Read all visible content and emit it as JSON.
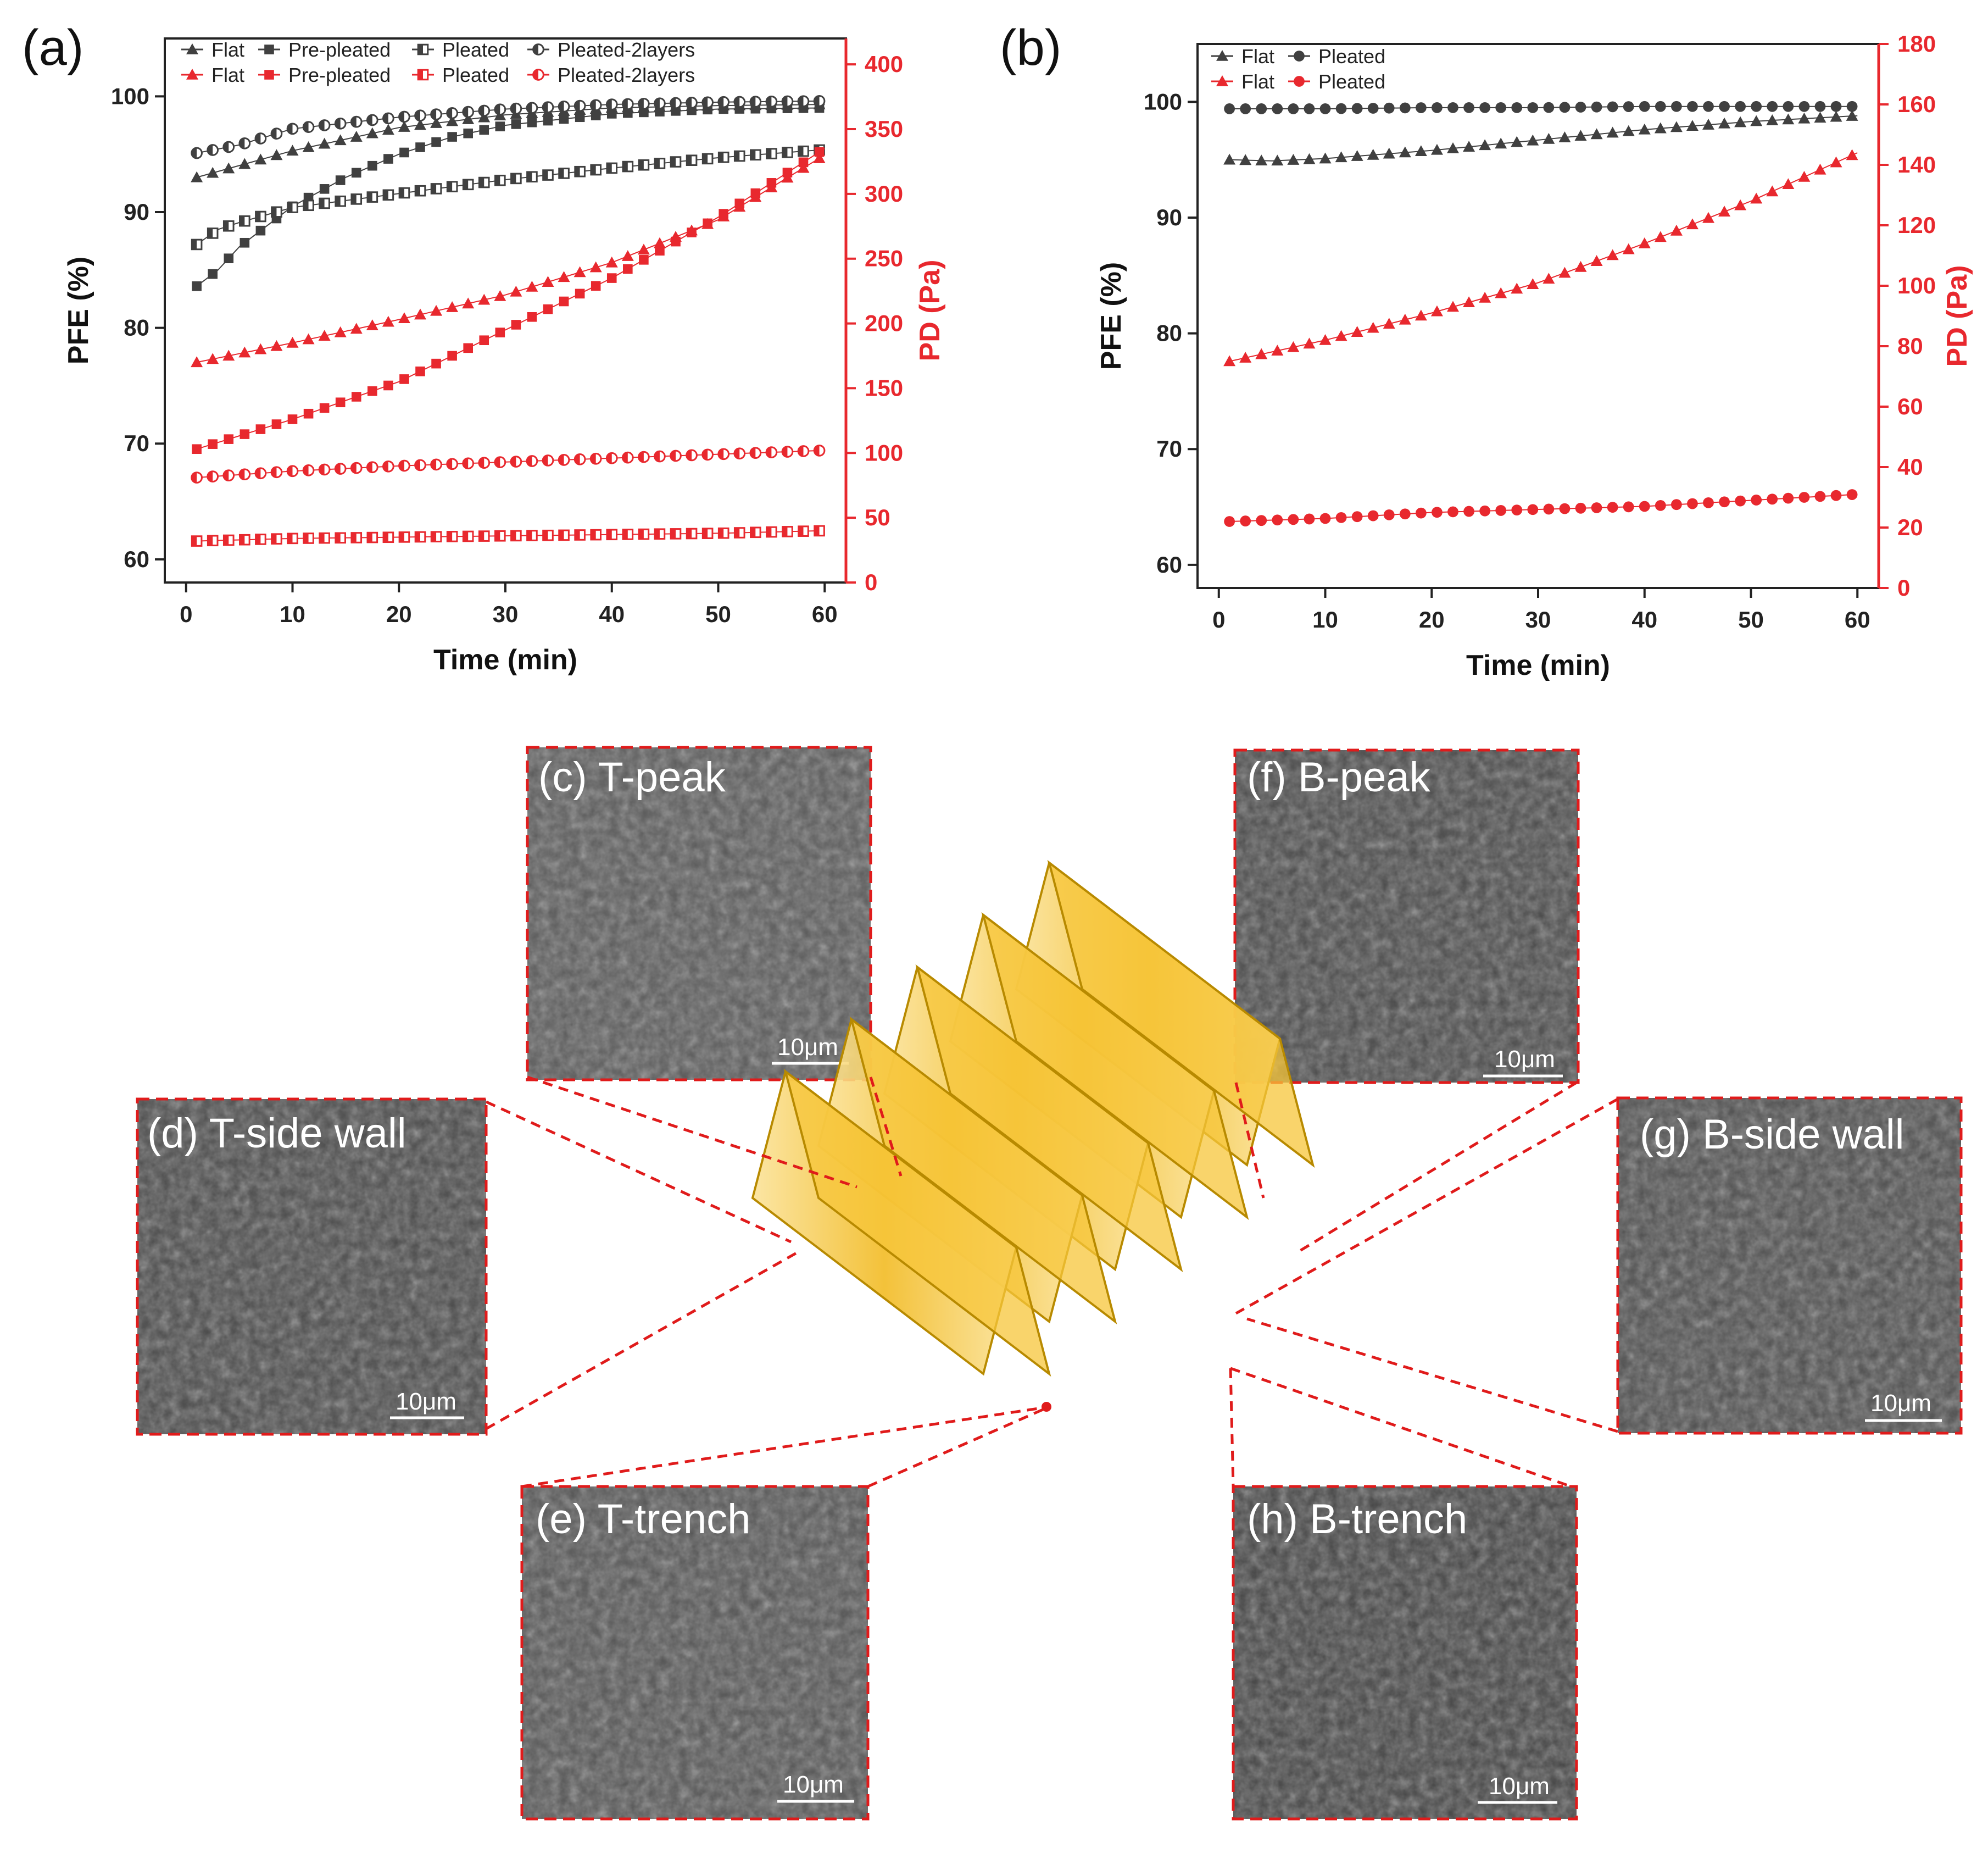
{
  "colors": {
    "black_series": "#404040",
    "red_series": "#e8282e",
    "dash": "#e01b1b",
    "pleat_fill": "#f7c53a",
    "pleat_stroke": "#b88a00"
  },
  "chart_data": [
    {
      "id": "a",
      "panel_label": "(a)",
      "type": "scatter",
      "title": "",
      "xlabel": "Time (min)",
      "ylabel": "PFE (%)",
      "y2label": "PD (Pa)",
      "xlim": [
        -2,
        62
      ],
      "ylim": [
        58,
        105
      ],
      "y2lim": [
        0,
        420
      ],
      "xticks": [
        "0",
        "10",
        "20",
        "30",
        "40",
        "50",
        "60"
      ],
      "yticks": [
        "60",
        "70",
        "80",
        "90",
        "100"
      ],
      "y2ticks": [
        "0",
        "50",
        "100",
        "150",
        "200",
        "250",
        "300",
        "350",
        "400"
      ],
      "legend_position": "top-left",
      "legend": {
        "row1": [
          "Flat",
          "Pre-pleated",
          "Pleated",
          "Pleated-2layers"
        ],
        "row2": [
          "Flat",
          "Pre-pleated",
          "Pleated",
          "Pleated-2layers"
        ]
      },
      "series": [
        {
          "name": "Flat",
          "axis": "left",
          "color": "black",
          "marker": "triangle",
          "points": [
            [
              1,
              93.0
            ],
            [
              10,
              95.3
            ],
            [
              20,
              97.3
            ],
            [
              30,
              98.4
            ],
            [
              40,
              99.0
            ],
            [
              50,
              99.2
            ],
            [
              60,
              99.3
            ]
          ]
        },
        {
          "name": "Pre-pleated",
          "axis": "left",
          "color": "black",
          "marker": "square",
          "points": [
            [
              1,
              83.6
            ],
            [
              3,
              85.0
            ],
            [
              5,
              87.0
            ],
            [
              10,
              90.5
            ],
            [
              15,
              93.0
            ],
            [
              20,
              95.0
            ],
            [
              25,
              96.5
            ],
            [
              30,
              97.5
            ],
            [
              40,
              98.5
            ],
            [
              50,
              98.9
            ],
            [
              60,
              99.0
            ]
          ]
        },
        {
          "name": "Pleated",
          "axis": "left",
          "color": "black",
          "marker": "half-square",
          "points": [
            [
              1,
              87.2
            ],
            [
              3,
              88.5
            ],
            [
              5,
              89.1
            ],
            [
              10,
              90.4
            ],
            [
              20,
              91.6
            ],
            [
              30,
              92.8
            ],
            [
              40,
              93.8
            ],
            [
              50,
              94.7
            ],
            [
              60,
              95.4
            ]
          ]
        },
        {
          "name": "Pleated-2layers",
          "axis": "left",
          "color": "black",
          "marker": "half-circle",
          "points": [
            [
              1,
              95.1
            ],
            [
              5,
              95.8
            ],
            [
              10,
              97.2
            ],
            [
              20,
              98.2
            ],
            [
              30,
              98.9
            ],
            [
              40,
              99.3
            ],
            [
              50,
              99.5
            ],
            [
              60,
              99.6
            ]
          ]
        },
        {
          "name": "Flat",
          "axis": "right",
          "color": "red",
          "marker": "triangle",
          "points": [
            [
              1,
              170
            ],
            [
              10,
              185
            ],
            [
              20,
              203
            ],
            [
              30,
              222
            ],
            [
              40,
              247
            ],
            [
              50,
              280
            ],
            [
              60,
              330
            ]
          ]
        },
        {
          "name": "Pre-pleated",
          "axis": "right",
          "color": "red",
          "marker": "square",
          "points": [
            [
              1,
              103
            ],
            [
              10,
              126
            ],
            [
              20,
              155
            ],
            [
              30,
              195
            ],
            [
              40,
              235
            ],
            [
              50,
              282
            ],
            [
              60,
              335
            ]
          ]
        },
        {
          "name": "Pleated",
          "axis": "right",
          "color": "red",
          "marker": "half-square",
          "points": [
            [
              1,
              32
            ],
            [
              10,
              34
            ],
            [
              20,
              35
            ],
            [
              30,
              36
            ],
            [
              40,
              37
            ],
            [
              50,
              38
            ],
            [
              60,
              40
            ]
          ]
        },
        {
          "name": "Pleated-2layers",
          "axis": "right",
          "color": "red",
          "marker": "half-circle",
          "points": [
            [
              1,
              81
            ],
            [
              10,
              86
            ],
            [
              20,
              90
            ],
            [
              30,
              93
            ],
            [
              40,
              96
            ],
            [
              50,
              99
            ],
            [
              60,
              102
            ]
          ]
        }
      ]
    },
    {
      "id": "b",
      "panel_label": "(b)",
      "type": "scatter",
      "title": "",
      "xlabel": "Time (min)",
      "ylabel": "PFE (%)",
      "y2label": "PD (Pa)",
      "xlim": [
        -2,
        62
      ],
      "ylim": [
        58,
        105
      ],
      "y2lim": [
        0,
        180
      ],
      "xticks": [
        "0",
        "10",
        "20",
        "30",
        "40",
        "50",
        "60"
      ],
      "yticks": [
        "60",
        "70",
        "80",
        "90",
        "100"
      ],
      "y2ticks": [
        "0",
        "20",
        "40",
        "60",
        "80",
        "100",
        "120",
        "140",
        "160",
        "180"
      ],
      "legend_position": "top-left",
      "legend": {
        "row1": [
          "Flat",
          "Pleated"
        ],
        "row2": [
          "Flat",
          "Pleated"
        ]
      },
      "series": [
        {
          "name": "Flat",
          "axis": "left",
          "color": "black",
          "marker": "triangle",
          "points": [
            [
              1,
              95.0
            ],
            [
              5,
              94.9
            ],
            [
              10,
              95.1
            ],
            [
              20,
              95.8
            ],
            [
              30,
              96.7
            ],
            [
              40,
              97.6
            ],
            [
              50,
              98.3
            ],
            [
              60,
              98.8
            ]
          ]
        },
        {
          "name": "Pleated",
          "axis": "left",
          "color": "black",
          "marker": "circle",
          "points": [
            [
              1,
              99.4
            ],
            [
              10,
              99.4
            ],
            [
              20,
              99.5
            ],
            [
              30,
              99.5
            ],
            [
              40,
              99.6
            ],
            [
              50,
              99.6
            ],
            [
              60,
              99.6
            ]
          ]
        },
        {
          "name": "Flat",
          "axis": "right",
          "color": "red",
          "marker": "triangle",
          "points": [
            [
              1,
              75
            ],
            [
              10,
              82
            ],
            [
              20,
              91
            ],
            [
              30,
              101
            ],
            [
              40,
              114
            ],
            [
              50,
              128
            ],
            [
              60,
              144
            ]
          ]
        },
        {
          "name": "Pleated",
          "axis": "right",
          "color": "red",
          "marker": "circle",
          "points": [
            [
              1,
              22
            ],
            [
              10,
              23
            ],
            [
              20,
              25
            ],
            [
              30,
              26
            ],
            [
              40,
              27
            ],
            [
              50,
              29
            ],
            [
              60,
              31
            ]
          ]
        }
      ]
    }
  ],
  "sem_images": [
    {
      "id": "c",
      "label": "(c) T-peak",
      "scale": "10μm"
    },
    {
      "id": "d",
      "label": "(d) T-side wall",
      "scale": "10μm"
    },
    {
      "id": "e",
      "label": "(e) T-trench",
      "scale": "10μm"
    },
    {
      "id": "f",
      "label": "(f) B-peak",
      "scale": "10μm"
    },
    {
      "id": "g",
      "label": "(g) B-side wall",
      "scale": "10μm"
    },
    {
      "id": "h",
      "label": "(h) B-trench",
      "scale": "10μm"
    }
  ]
}
